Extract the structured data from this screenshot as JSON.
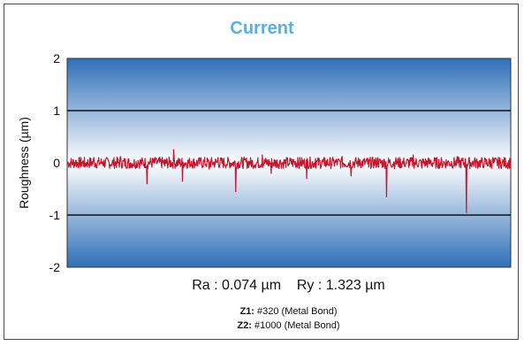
{
  "chart_data": {
    "type": "line",
    "title": "Current",
    "ylabel": "Roughness (µm)",
    "xlabel": "",
    "ylim": [
      -2,
      2
    ],
    "yticks": [
      "2",
      "1",
      "0",
      "-1",
      "-2"
    ],
    "grid": true,
    "series": [
      {
        "color": "#c0172f",
        "x": [
          0,
          0.02,
          0.04,
          0.06,
          0.08,
          0.1,
          0.12,
          0.14,
          0.16,
          0.18,
          0.2,
          0.22,
          0.24,
          0.26,
          0.28,
          0.3,
          0.32,
          0.34,
          0.36,
          0.38,
          0.4,
          0.42,
          0.44,
          0.46,
          0.48,
          0.5,
          0.52,
          0.54,
          0.56,
          0.58,
          0.6,
          0.62,
          0.64,
          0.66,
          0.68,
          0.7,
          0.72,
          0.74,
          0.76,
          0.78,
          0.8,
          0.82,
          0.84,
          0.86,
          0.88,
          0.9,
          0.92,
          0.94,
          0.96,
          0.98,
          1.0
        ],
        "values": [
          -0.02,
          0.05,
          -0.08,
          0.1,
          0.02,
          -0.05,
          0.12,
          -0.1,
          0.04,
          -0.4,
          0.08,
          -0.06,
          0.25,
          -0.35,
          0.03,
          0.07,
          -0.12,
          0.1,
          -0.05,
          -0.55,
          0.06,
          -0.08,
          0.15,
          -0.2,
          0.05,
          -0.02,
          0.1,
          -0.3,
          0.08,
          -0.05,
          0.04,
          0.12,
          -0.25,
          0.06,
          -0.08,
          0.1,
          -0.65,
          0.03,
          -0.04,
          0.15,
          -0.1,
          0.05,
          -0.08,
          0.02,
          0.12,
          -0.95,
          0.05,
          -0.06,
          0.1,
          -0.03,
          0.02
        ]
      }
    ]
  },
  "stats_text": "Ra : 0.074 µm    Ry : 1.323 µm",
  "legend": [
    {
      "label": "Z1:",
      "value": " #320 (Metal Bond)"
    },
    {
      "label": "Z2:",
      "value": " #1000 (Metal Bond)"
    }
  ],
  "colors": {
    "title": "#5aaee0",
    "line": "#c0172f",
    "plot_gradient": [
      "#2f6fb8",
      "#ffffff",
      "#2f6fb8"
    ]
  }
}
